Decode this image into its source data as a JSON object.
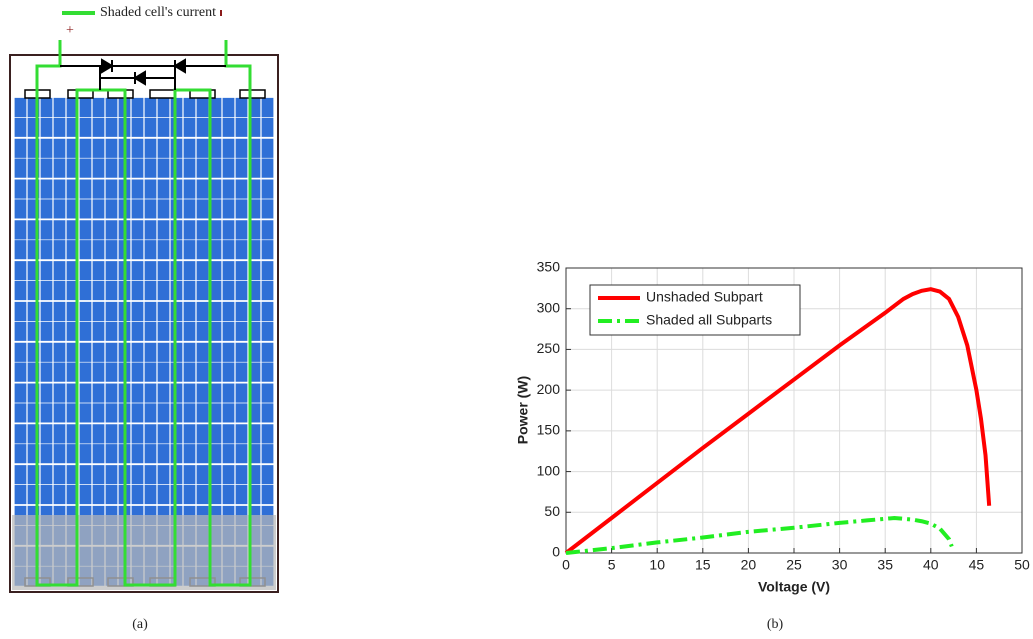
{
  "panel_a": {
    "legend_label": "Shaded cell's current",
    "positive_terminal": "+",
    "caption": "(a)"
  },
  "chart_data": {
    "type": "line",
    "caption": "(b)",
    "xlabel": "Voltage (V)",
    "ylabel": "Power (W)",
    "xlim": [
      0,
      50
    ],
    "xticks": [
      0,
      5,
      10,
      15,
      20,
      25,
      30,
      35,
      40,
      45,
      50
    ],
    "ylim": [
      0,
      350
    ],
    "yticks": [
      0,
      50,
      100,
      150,
      200,
      250,
      300,
      350
    ],
    "grid": true,
    "legend": "upper left",
    "series": [
      {
        "name": "Unshaded Subpart",
        "color": "#ff0000",
        "linestyle": "solid",
        "x": [
          0,
          5,
          10,
          15,
          20,
          25,
          30,
          35,
          37,
          38,
          39,
          40,
          41,
          42,
          43,
          44,
          45,
          45.5,
          46,
          46.4
        ],
        "values": [
          0,
          43,
          86,
          129,
          171,
          213,
          255,
          295,
          312,
          318,
          322,
          324,
          321,
          312,
          290,
          255,
          200,
          165,
          120,
          58
        ]
      },
      {
        "name": "Shaded all Subparts",
        "color": "#22ee22",
        "linestyle": "dashdot",
        "x": [
          0,
          5,
          10,
          15,
          20,
          25,
          30,
          33,
          35,
          36,
          37,
          38,
          39,
          40,
          41,
          42,
          42.3
        ],
        "values": [
          0,
          6,
          13,
          19,
          26,
          31,
          37,
          40,
          42,
          43,
          42,
          41,
          39,
          36,
          30,
          17,
          8
        ]
      }
    ]
  }
}
